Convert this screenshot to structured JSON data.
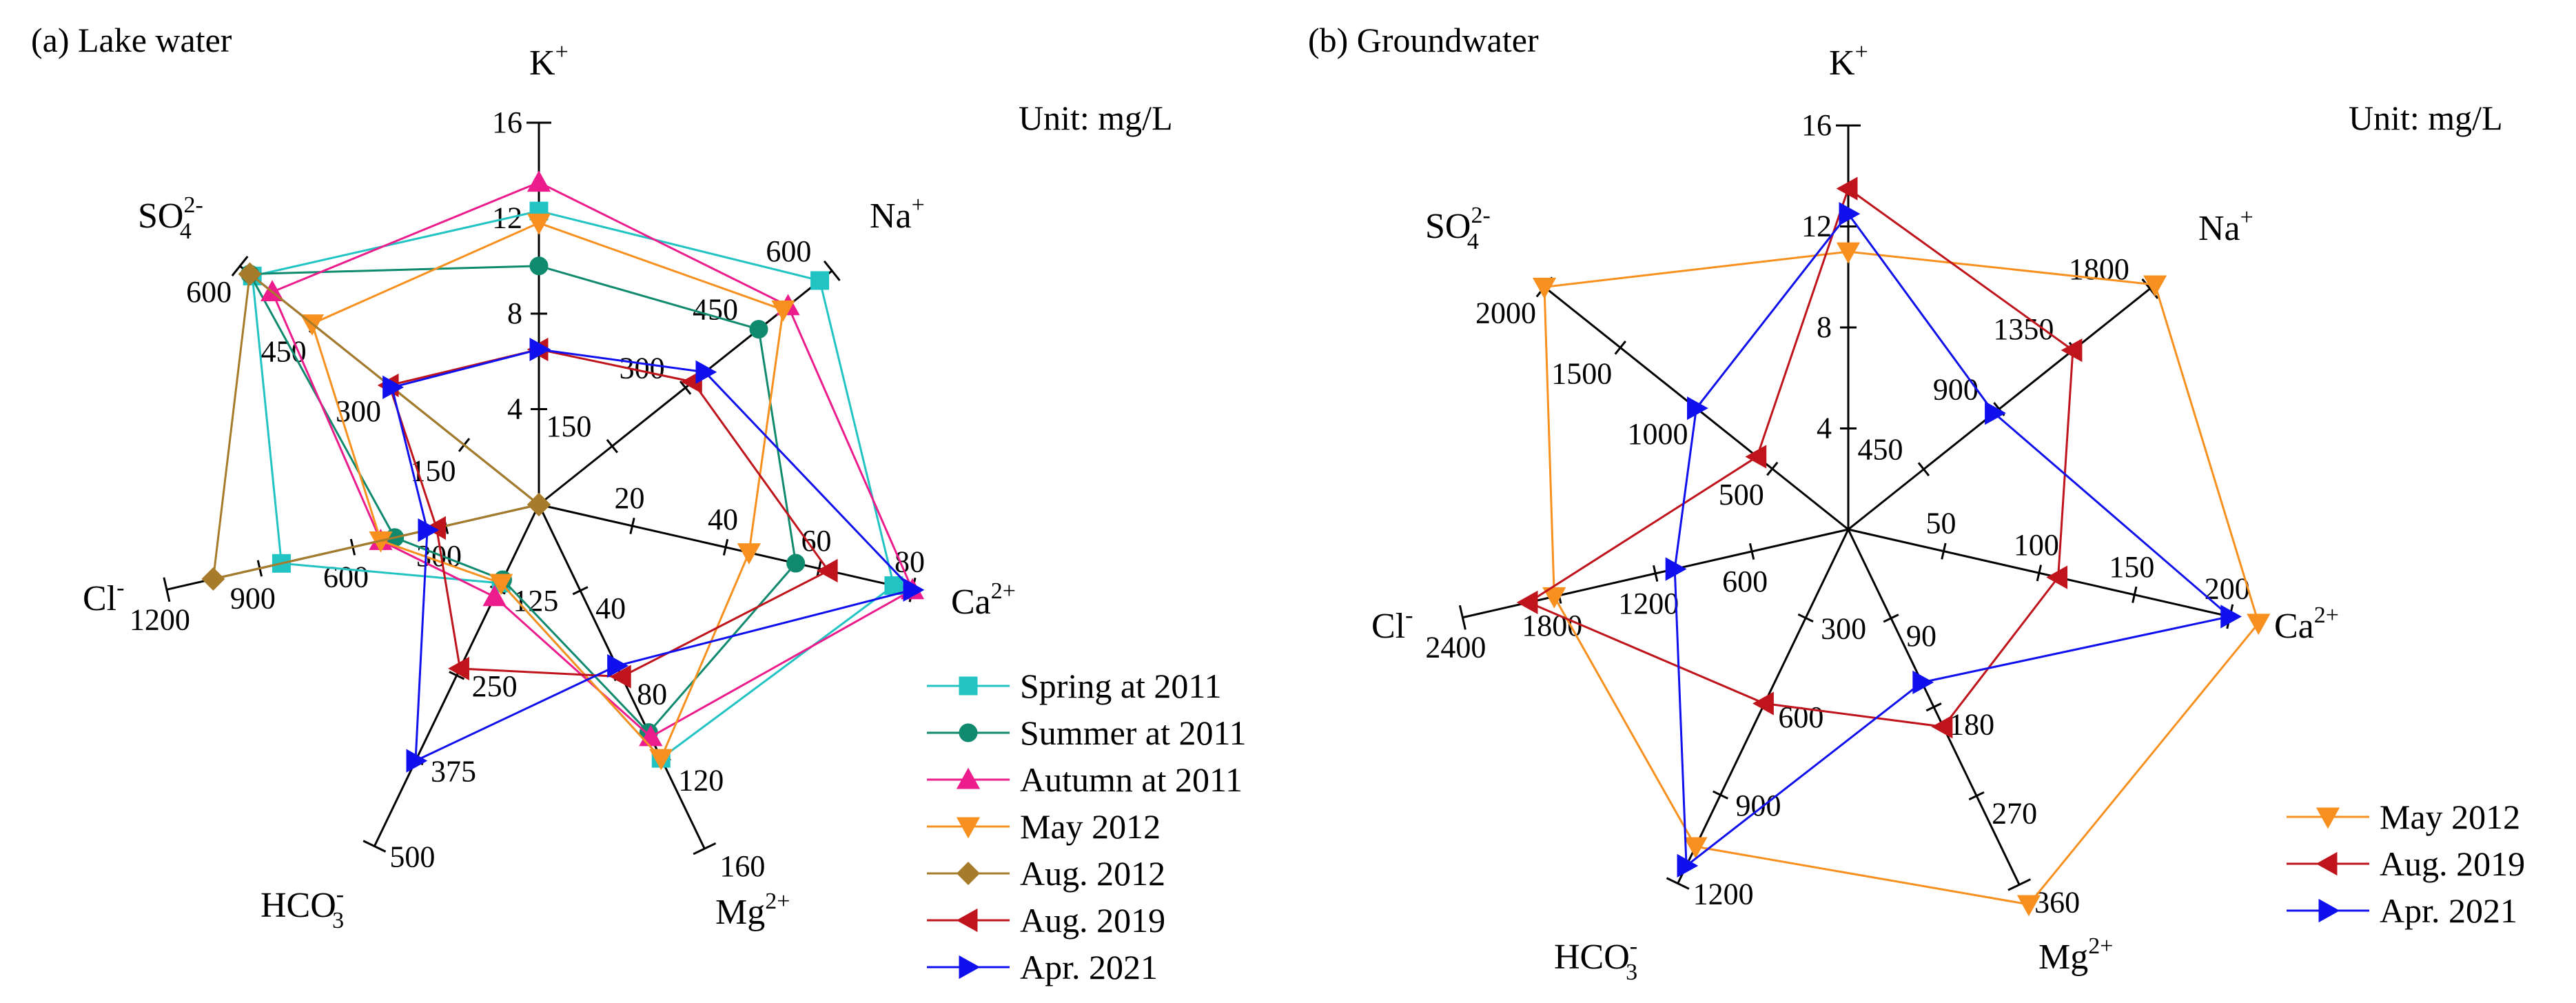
{
  "figure": {
    "unit_label": "Unit: mg/L",
    "ions": [
      {
        "base": "K",
        "sup": "+",
        "sub": ""
      },
      {
        "base": "Na",
        "sup": "+",
        "sub": ""
      },
      {
        "base": "Ca",
        "sup": "2+",
        "sub": ""
      },
      {
        "base": "Mg",
        "sup": "2+",
        "sub": ""
      },
      {
        "base": "HCO",
        "sup": "-",
        "sub": "3"
      },
      {
        "base": "Cl",
        "sup": "-",
        "sub": ""
      },
      {
        "base": "SO",
        "sup": "2-",
        "sub": "4"
      }
    ]
  },
  "chart_data": [
    {
      "type": "radar",
      "title": "(a) Lake water",
      "axes": [
        "K+",
        "Na+",
        "Ca2+",
        "Mg2+",
        "HCO3-",
        "Cl-",
        "SO42-"
      ],
      "axis_max": [
        16,
        600,
        80,
        160,
        500,
        1200,
        600
      ],
      "axis_ticks": [
        [
          "4",
          "8",
          "12",
          "16"
        ],
        [
          "150",
          "300",
          "450",
          "600"
        ],
        [
          "20",
          "40",
          "60",
          "80"
        ],
        [
          "40",
          "80",
          "120",
          "160"
        ],
        [
          "125",
          "250",
          "375",
          "500"
        ],
        [
          "300",
          "600",
          "900",
          "1200"
        ],
        [
          "150",
          "300",
          "450",
          "600"
        ]
      ],
      "series": [
        {
          "name": "Spring at 2011",
          "color": "#22C3C3",
          "marker": "square",
          "values": [
            12.3,
            575,
            76,
            118,
            115,
            830,
            575
          ]
        },
        {
          "name": "Summer at 2011",
          "color": "#108A6E",
          "marker": "circle",
          "values": [
            10,
            450,
            55,
            106,
            110,
            465,
            580
          ]
        },
        {
          "name": "Autumn at 2011",
          "color": "#EC1C8C",
          "marker": "triangle-up",
          "values": [
            13.5,
            510,
            80,
            108,
            135,
            510,
            535
          ]
        },
        {
          "name": "May 2012",
          "color": "#F7901E",
          "marker": "triangle-down",
          "values": [
            11.8,
            500,
            45,
            118,
            115,
            510,
            455
          ]
        },
        {
          "name": "Aug. 2012",
          "color": "#A67C2A",
          "marker": "diamond",
          "values": [
            0,
            0,
            0,
            0,
            0,
            1050,
            580
          ]
        },
        {
          "name": "Aug. 2019",
          "color": "#C0141C",
          "marker": "triangle-left",
          "values": [
            6.5,
            315,
            62,
            80,
            240,
            330,
            300
          ]
        },
        {
          "name": "Apr. 2021",
          "color": "#1010EE",
          "marker": "triangle-right",
          "values": [
            6.5,
            340,
            80,
            75,
            375,
            360,
            295
          ]
        }
      ]
    },
    {
      "type": "radar",
      "title": "(b) Groundwater",
      "axes": [
        "K+",
        "Na+",
        "Ca2+",
        "Mg2+",
        "HCO3-",
        "Cl-",
        "SO42-"
      ],
      "axis_max": [
        16,
        1800,
        200,
        360,
        1200,
        2400,
        2000
      ],
      "axis_ticks": [
        [
          "4",
          "8",
          "12",
          "16"
        ],
        [
          "450",
          "900",
          "1350",
          "1800"
        ],
        [
          "50",
          "100",
          "150",
          "200"
        ],
        [
          "90",
          "180",
          "270",
          "360"
        ],
        [
          "300",
          "600",
          "900",
          "1200"
        ],
        [
          "600",
          "1200",
          "1800",
          "2400"
        ],
        [
          "500",
          "1000",
          "1500",
          "2000"
        ]
      ],
      "series": [
        {
          "name": "May 2012",
          "color": "#F7901E",
          "marker": "triangle-down",
          "values": [
            11,
            1830,
            215,
            380,
            1075,
            1830,
            2000
          ]
        },
        {
          "name": "Aug. 2019",
          "color": "#C0141C",
          "marker": "triangle-left",
          "values": [
            13.5,
            1340,
            110,
            200,
            590,
            1990,
            600
          ]
        },
        {
          "name": "Apr. 2021",
          "color": "#1010EE",
          "marker": "triangle-right",
          "values": [
            12.5,
            870,
            200,
            155,
            1140,
            1080,
            1000
          ]
        }
      ]
    }
  ]
}
